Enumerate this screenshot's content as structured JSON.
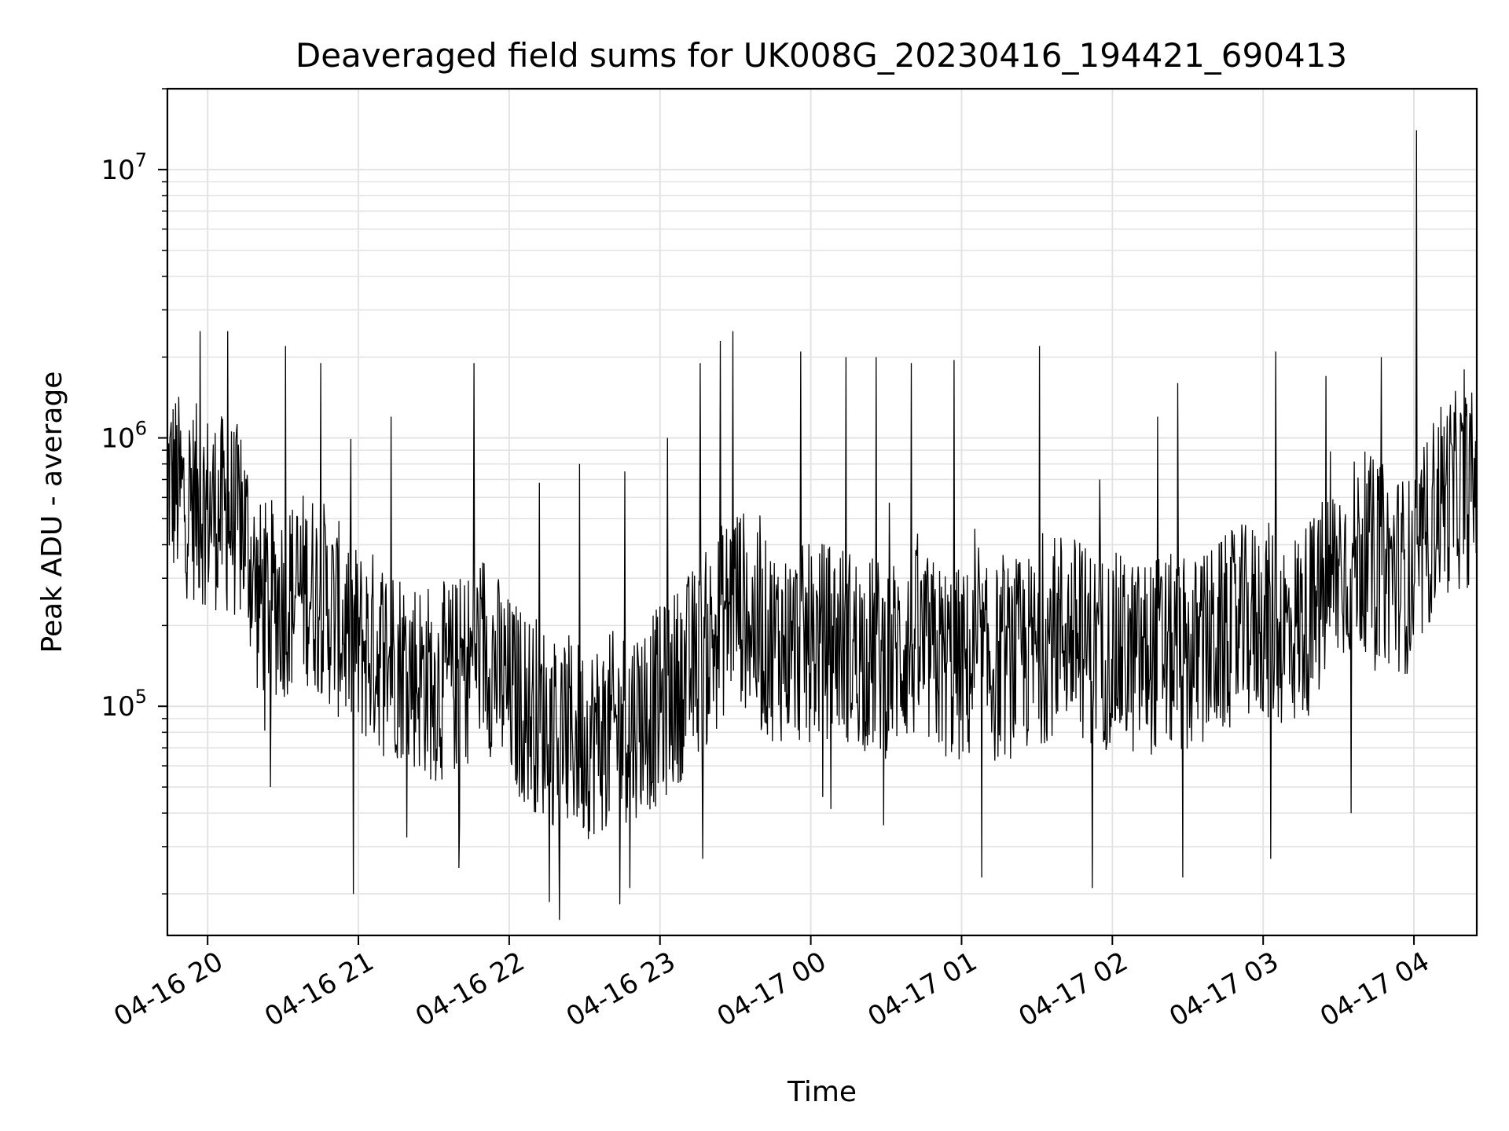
{
  "chart_data": {
    "type": "line",
    "title": "Deaveraged field sums for UK008G_20230416_194421_690413",
    "xlabel": "Time",
    "ylabel": "Peak ADU - average",
    "yscale": "log",
    "ylim": [
      14000,
      20000000
    ],
    "xlim": [
      "04-16 19:44",
      "04-17 04:25"
    ],
    "grid": true,
    "line_color": "#000000",
    "x_ticks": [
      "04-16 20",
      "04-16 21",
      "04-16 22",
      "04-16 23",
      "04-17 00",
      "04-17 01",
      "04-17 02",
      "04-17 03",
      "04-17 04"
    ],
    "y_ticks": [
      {
        "base": "10",
        "exp": "5",
        "value": 100000
      },
      {
        "base": "10",
        "exp": "6",
        "value": 1000000
      },
      {
        "base": "10",
        "exp": "7",
        "value": 10000000
      }
    ],
    "series": [
      {
        "x": [
          "04-16 19:45",
          "04-16 19:50",
          "04-16 20:00",
          "04-16 20:10",
          "04-16 20:15",
          "04-16 20:20",
          "04-16 20:30",
          "04-16 20:40",
          "04-16 20:45",
          "04-16 20:50",
          "04-16 21:00",
          "04-16 21:10",
          "04-16 21:20",
          "04-16 21:30",
          "04-16 21:40",
          "04-16 21:50",
          "04-16 22:00",
          "04-16 22:10",
          "04-16 22:20",
          "04-16 22:30",
          "04-16 22:40",
          "04-16 22:50",
          "04-16 23:00",
          "04-16 23:10",
          "04-16 23:20",
          "04-16 23:30",
          "04-16 23:40",
          "04-16 23:50",
          "04-17 00:00",
          "04-17 00:10",
          "04-17 00:20",
          "04-17 00:30",
          "04-17 00:40",
          "04-17 00:50",
          "04-17 01:00",
          "04-17 01:10",
          "04-17 01:20",
          "04-17 01:30",
          "04-17 01:40",
          "04-17 01:50",
          "04-17 02:00",
          "04-17 02:10",
          "04-17 02:20",
          "04-17 02:30",
          "04-17 02:40",
          "04-17 02:50",
          "04-17 03:00",
          "04-17 03:10",
          "04-17 03:20",
          "04-17 03:30",
          "04-17 03:40",
          "04-17 03:50",
          "04-17 04:00",
          "04-17 04:10",
          "04-17 04:20",
          "04-17 04:25"
        ],
        "y": [
          700000,
          600000,
          550000,
          500000,
          450000,
          250000,
          250000,
          280000,
          260000,
          220000,
          170000,
          160000,
          140000,
          120000,
          130000,
          170000,
          110000,
          95000,
          80000,
          75000,
          80000,
          90000,
          100000,
          130000,
          170000,
          260000,
          180000,
          170000,
          170000,
          180000,
          160000,
          150000,
          170000,
          150000,
          140000,
          140000,
          150000,
          160000,
          200000,
          170000,
          160000,
          150000,
          160000,
          150000,
          170000,
          200000,
          210000,
          190000,
          220000,
          330000,
          380000,
          330000,
          300000,
          600000,
          650000,
          650000
        ],
        "spikes": [
          {
            "x": "04-16 19:57",
            "y": 2500000
          },
          {
            "x": "04-16 20:08",
            "y": 2500000
          },
          {
            "x": "04-16 20:31",
            "y": 2200000
          },
          {
            "x": "04-16 20:45",
            "y": 1900000
          },
          {
            "x": "04-16 21:13",
            "y": 1200000
          },
          {
            "x": "04-16 21:46",
            "y": 1900000
          },
          {
            "x": "04-16 22:12",
            "y": 680000
          },
          {
            "x": "04-16 22:28",
            "y": 800000
          },
          {
            "x": "04-16 22:46",
            "y": 750000
          },
          {
            "x": "04-16 23:03",
            "y": 1000000
          },
          {
            "x": "04-16 23:16",
            "y": 1900000
          },
          {
            "x": "04-16 23:24",
            "y": 2300000
          },
          {
            "x": "04-16 23:29",
            "y": 2500000
          },
          {
            "x": "04-16 23:56",
            "y": 2100000
          },
          {
            "x": "04-17 00:14",
            "y": 2000000
          },
          {
            "x": "04-17 00:26",
            "y": 2000000
          },
          {
            "x": "04-17 00:40",
            "y": 1900000
          },
          {
            "x": "04-17 00:57",
            "y": 1950000
          },
          {
            "x": "04-17 01:31",
            "y": 2200000
          },
          {
            "x": "04-17 01:55",
            "y": 700000
          },
          {
            "x": "04-17 02:18",
            "y": 1200000
          },
          {
            "x": "04-17 02:26",
            "y": 1600000
          },
          {
            "x": "04-17 03:05",
            "y": 2100000
          },
          {
            "x": "04-17 03:25",
            "y": 1700000
          },
          {
            "x": "04-17 03:47",
            "y": 2000000
          },
          {
            "x": "04-17 04:01",
            "y": 14000000
          },
          {
            "x": "04-17 04:20",
            "y": 1800000
          },
          {
            "x": "04-16 20:25",
            "y": 50000
          },
          {
            "x": "04-16 20:58",
            "y": 20000
          },
          {
            "x": "04-16 21:40",
            "y": 25000
          },
          {
            "x": "04-16 22:20",
            "y": 16000
          },
          {
            "x": "04-16 22:48",
            "y": 21000
          },
          {
            "x": "04-16 23:17",
            "y": 27000
          },
          {
            "x": "04-17 00:29",
            "y": 36000
          },
          {
            "x": "04-17 01:08",
            "y": 23000
          },
          {
            "x": "04-17 01:52",
            "y": 21000
          },
          {
            "x": "04-17 02:28",
            "y": 23000
          },
          {
            "x": "04-17 03:03",
            "y": 27000
          },
          {
            "x": "04-17 03:35",
            "y": 40000
          }
        ]
      }
    ]
  }
}
